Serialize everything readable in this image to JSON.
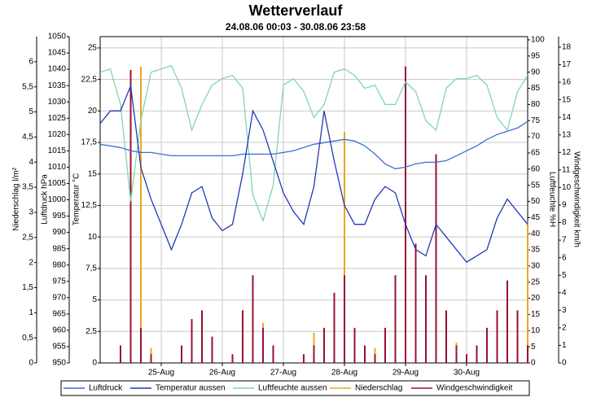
{
  "chart_data": {
    "type": "line",
    "title": "Wetterverlauf",
    "subtitle": "24.08.06 00:03 - 30.08.06 23:58",
    "x": [
      0,
      4,
      8,
      12,
      16,
      20,
      24,
      28,
      32,
      36,
      40,
      44,
      48,
      52,
      56,
      60,
      64,
      68,
      72,
      76,
      80,
      84,
      88,
      92,
      96,
      100,
      104,
      108,
      112,
      116,
      120,
      124,
      128,
      132,
      136,
      140,
      144,
      148,
      152,
      156,
      160,
      164,
      168
    ],
    "xlim": [
      0,
      168
    ],
    "xticks": [
      {
        "value": 24,
        "label": "25-Aug"
      },
      {
        "value": 48,
        "label": "26-Aug"
      },
      {
        "value": 72,
        "label": "27-Aug"
      },
      {
        "value": 96,
        "label": "28-Aug"
      },
      {
        "value": 120,
        "label": "29-Aug"
      },
      {
        "value": 144,
        "label": "30-Aug"
      }
    ],
    "grid": true,
    "ylabel": "Temperatur °C",
    "ylim": [
      0,
      25.9
    ],
    "yticks": [
      0,
      {
        "value": 2.5,
        "label": "2,5"
      },
      5,
      {
        "value": 7.5,
        "label": "7,5"
      },
      10,
      {
        "value": 12.5,
        "label": "12,5"
      },
      15,
      {
        "value": 17.5,
        "label": "17,5"
      },
      20,
      {
        "value": 22.5,
        "label": "22,5"
      },
      25
    ],
    "y2label": "Luftfeuchte %H",
    "y2lim": [
      0,
      101
    ],
    "y2ticks": [
      0,
      5,
      10,
      15,
      20,
      25,
      30,
      35,
      40,
      45,
      50,
      55,
      60,
      65,
      70,
      75,
      80,
      85,
      90,
      95,
      100
    ],
    "y3label": "Luftdruck hPa",
    "y3lim": [
      950,
      1050
    ],
    "y3ticks": [
      950,
      955,
      960,
      965,
      970,
      975,
      980,
      985,
      990,
      995,
      1000,
      1005,
      1010,
      1015,
      1020,
      1025,
      1030,
      1035,
      1040,
      1045,
      1050
    ],
    "y4label": "Niederschlag l/m²",
    "y4lim": [
      0,
      6.5
    ],
    "y4ticks": [
      0,
      {
        "value": 0.5,
        "label": "0,5"
      },
      1,
      {
        "value": 1.5,
        "label": "1,5"
      },
      2,
      {
        "value": 2.5,
        "label": "2,5"
      },
      3,
      {
        "value": 3.5,
        "label": "3,5"
      },
      4,
      {
        "value": 4.5,
        "label": "4,5"
      },
      5,
      {
        "value": 5.5,
        "label": "5,5"
      },
      6
    ],
    "y5label": "Windgeschwindigkeit km/h",
    "y5lim": [
      0,
      18.6
    ],
    "y5ticks": [
      0,
      1,
      2,
      3,
      4,
      5,
      6,
      7,
      8,
      9,
      10,
      11,
      12,
      13,
      14,
      15,
      16,
      17,
      18
    ],
    "series": [
      {
        "name": "Luftdruck",
        "color": "#3a6fd0",
        "axis": "y3",
        "values": [
          1017,
          1016.5,
          1016,
          1015,
          1014.5,
          1014.5,
          1014,
          1013.5,
          1013.5,
          1013.5,
          1013.5,
          1013.5,
          1013.5,
          1013.5,
          1014,
          1014,
          1014,
          1014,
          1014.5,
          1015,
          1016,
          1017,
          1017.5,
          1018,
          1018.5,
          1018,
          1016.5,
          1014,
          1011,
          1009.5,
          1010,
          1011,
          1011.5,
          1011.5,
          1012,
          1013.5,
          1015,
          1016.5,
          1018.5,
          1020,
          1021,
          1022,
          1024
        ]
      },
      {
        "name": "Temperatur aussen",
        "color": "#2438b8",
        "axis": "y",
        "values": [
          19,
          20,
          20,
          22,
          15.5,
          13,
          11,
          9,
          11,
          13.5,
          14,
          11.5,
          10.5,
          11,
          15,
          20,
          18.5,
          16,
          13.5,
          12,
          11,
          14,
          20,
          16,
          12.5,
          11,
          11,
          13,
          14,
          13.5,
          11,
          9,
          8.5,
          11,
          10,
          9,
          8,
          8.5,
          9,
          11.5,
          13,
          12,
          11
        ]
      },
      {
        "name": "Luftfeuchte aussen",
        "color": "#7fd6b4",
        "axis": "y2",
        "values": [
          90,
          91,
          80,
          50,
          75,
          90,
          91,
          92,
          85,
          72,
          80,
          86,
          88,
          89,
          85,
          52,
          44,
          55,
          86,
          88,
          84,
          76,
          80,
          90,
          91,
          89,
          85,
          86,
          80,
          80,
          87,
          84,
          75,
          72,
          85,
          88,
          88,
          89,
          86,
          76,
          72,
          84,
          89
        ]
      },
      {
        "name": "Niederschlag",
        "color": "#e8a820",
        "axis": "y4",
        "values": [
          0,
          0,
          0,
          0,
          5.9,
          0.3,
          0,
          0,
          0,
          0,
          0,
          0.2,
          0,
          0,
          0,
          0.5,
          0.8,
          0,
          0,
          0,
          0,
          0.6,
          0,
          0,
          4.6,
          0.5,
          0,
          0.3,
          0,
          1.0,
          0.8,
          0.6,
          0.5,
          0.8,
          0,
          0.4,
          0,
          0.3,
          0,
          0,
          0.3,
          0.5,
          2.8
        ]
      },
      {
        "name": "Windgeschwindigkeit",
        "color": "#9a1030",
        "axis": "y5",
        "values": [
          0,
          0,
          1,
          16.7,
          2,
          0.5,
          0,
          0,
          1,
          2.5,
          3,
          1.5,
          0,
          0.5,
          3,
          5,
          2,
          1,
          0,
          0,
          0.5,
          1,
          2,
          4,
          5,
          2,
          1,
          0.5,
          2,
          5,
          16.9,
          6.8,
          5,
          11.9,
          3,
          1,
          0.5,
          1,
          2,
          3,
          4.7,
          3,
          1
        ]
      }
    ]
  }
}
